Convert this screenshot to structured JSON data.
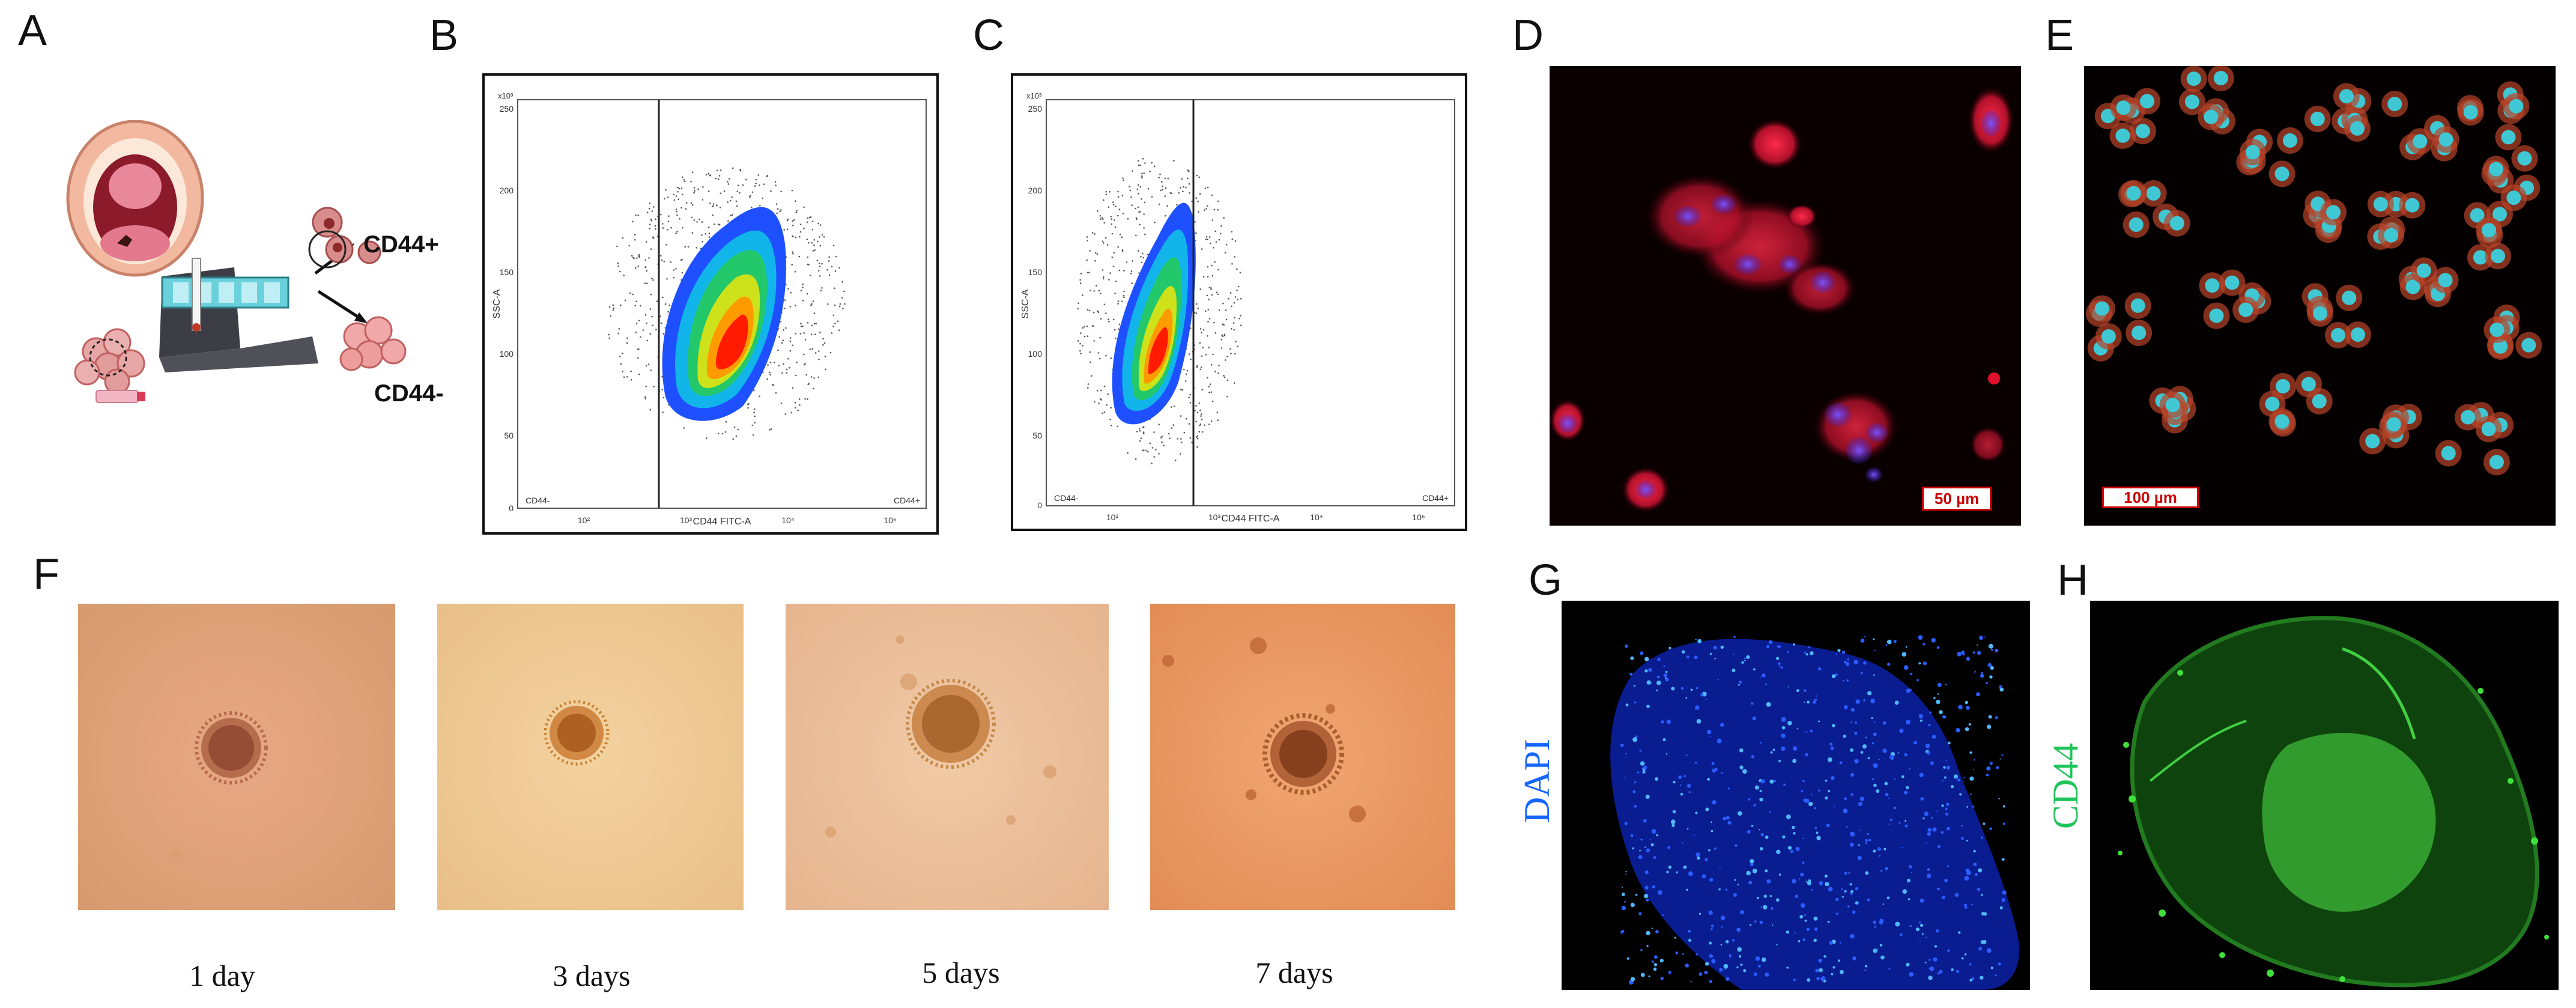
{
  "panel_labels": {
    "a": "A",
    "b": "B",
    "c": "C",
    "d": "D",
    "e": "E",
    "f": "F",
    "g": "G",
    "h": "H"
  },
  "schematic": {
    "cd44_pos": "CD44+",
    "cd44_neg": "CD44-"
  },
  "flow_b": {
    "y_unit": "x10³",
    "y_label": "SSC-A",
    "x_label": "CD44 FITC-A",
    "y_ticks": [
      "250",
      "200",
      "150",
      "100",
      "50",
      "0"
    ],
    "x_ticks": [
      "10²",
      "10³",
      "10⁴",
      "10⁵"
    ],
    "gate_left": "CD44-",
    "gate_right": "CD44+"
  },
  "flow_c": {
    "y_unit": "x10³",
    "y_label": "SSC-A",
    "x_label": "CD44 FITC-A",
    "y_ticks": [
      "250",
      "200",
      "150",
      "100",
      "50",
      "0"
    ],
    "x_ticks": [
      "10²",
      "10³",
      "10⁴",
      "10⁵"
    ],
    "gate_left": "CD44-",
    "gate_right": "CD44+"
  },
  "scale_d": "50 µm",
  "scale_e": "100 µm",
  "timecourse": [
    {
      "caption": "1 day"
    },
    {
      "caption": "3 days"
    },
    {
      "caption": "5 days"
    },
    {
      "caption": "7 days"
    }
  ],
  "stain_g": {
    "label": "DAPI",
    "color": "#1565ff"
  },
  "stain_h": {
    "label": "CD44",
    "color": "#1fc45a"
  },
  "colors": {
    "density_low": "#1e50ff",
    "density_high": "#ff1a00",
    "text": "#111111"
  }
}
